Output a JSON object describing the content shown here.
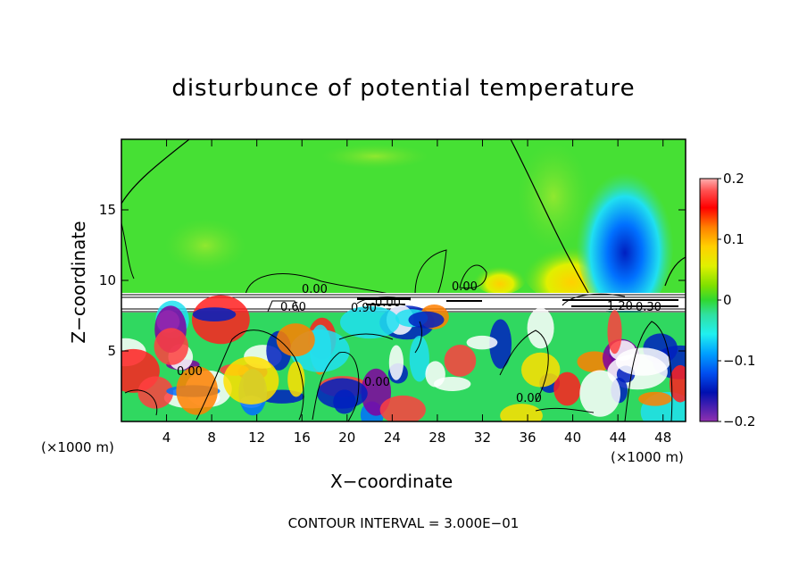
{
  "chart_data": {
    "type": "heatmap",
    "title": "disturbunce of potential temperature",
    "xlabel": "X−coordinate",
    "ylabel": "Z−coordinate",
    "x_unit_left": "(×1000 m)",
    "x_unit_right": "(×1000 m)",
    "footer": "CONTOUR INTERVAL = 3.000E−01",
    "xlim": [
      0,
      50
    ],
    "ylim": [
      0,
      20
    ],
    "x_ticks": [
      "4",
      "8",
      "12",
      "16",
      "20",
      "24",
      "28",
      "32",
      "36",
      "40",
      "44",
      "48"
    ],
    "y_ticks": [
      "5",
      "10",
      "15"
    ],
    "colorbar": {
      "range": [
        -0.2,
        0.2
      ],
      "tick_labels": [
        "0.2",
        "0.1",
        "0",
        "−0.1",
        "−0.2"
      ],
      "colors": [
        "#ffb0b0",
        "#ff4040",
        "#ff0000",
        "#ff7000",
        "#ffa000",
        "#ffd000",
        "#f0f000",
        "#b8f000",
        "#70e000",
        "#30d830",
        "#30e090",
        "#30f0f0",
        "#00c0ff",
        "#0080ff",
        "#0040e0",
        "#0010b0",
        "#6000a0",
        "#9030b0"
      ]
    },
    "contour_labels": [
      "0.00",
      "0.60",
      "0.90",
      "0.00",
      "0.00",
      "0.00",
      "0.00",
      "0.00",
      "1.20",
      "0.30"
    ]
  }
}
